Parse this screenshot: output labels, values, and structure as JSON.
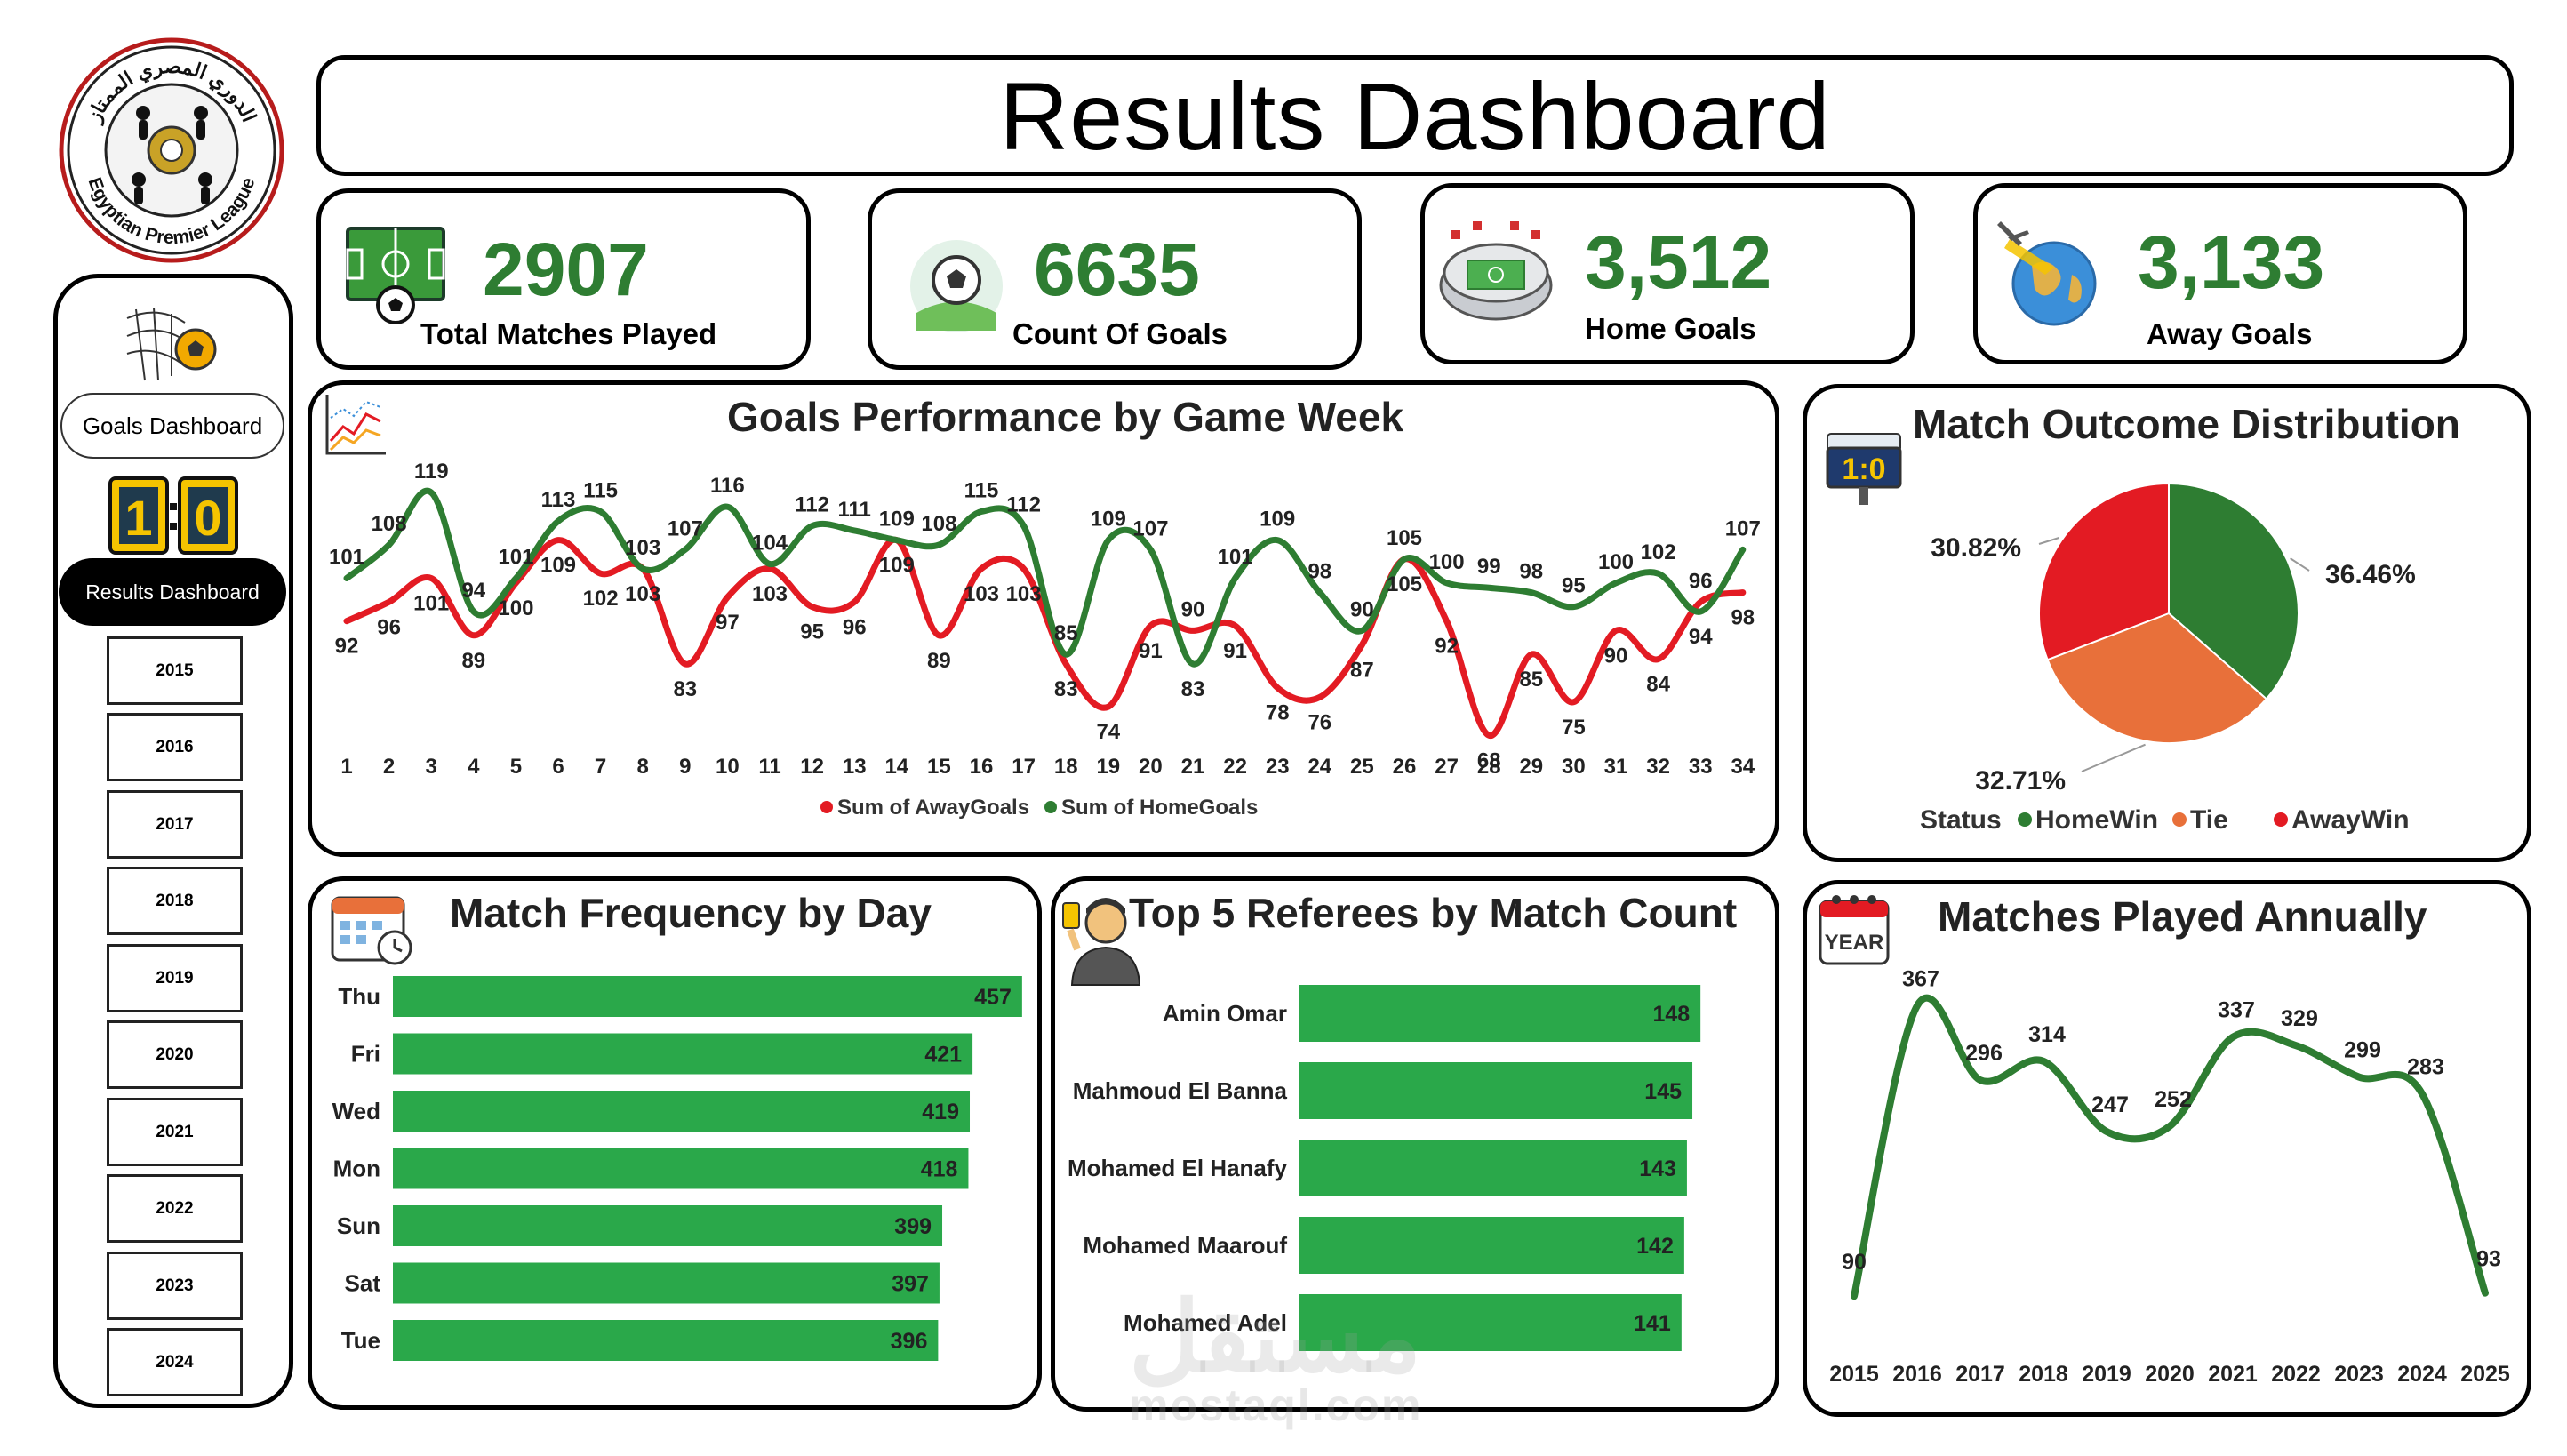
{
  "title": "Results Dashboard",
  "logo": {
    "arabic_text": "الدوري المصري الممتاز",
    "english_text": "Egyptian Premier League"
  },
  "sidebar": {
    "goals_dashboard": "Goals Dashboard",
    "results_dashboard": "Results Dashboard",
    "score_icon_text": "1:0",
    "years": [
      "2015",
      "2016",
      "2017",
      "2018",
      "2019",
      "2020",
      "2021",
      "2022",
      "2023",
      "2024"
    ]
  },
  "kpis": [
    {
      "value": "2907",
      "label": "Total Matches Played",
      "icon": "football-pitch-icon"
    },
    {
      "value": "6635",
      "label": "Count Of Goals",
      "icon": "goal-net-ball-icon"
    },
    {
      "value": "3,512",
      "label": "Home Goals",
      "icon": "stadium-icon"
    },
    {
      "value": "3,133",
      "label": "Away Goals",
      "icon": "airplane-globe-icon"
    }
  ],
  "goals_chart": {
    "title": "Goals Performance by Game Week",
    "legend": [
      "Sum of AwayGoals",
      "Sum of HomeGoals"
    ],
    "colors": {
      "away": "#e31b23",
      "home": "#2e7d32"
    }
  },
  "outcome_chart": {
    "title": "Match Outcome Distribution",
    "legend_title": "Status",
    "icon_text": "1:0"
  },
  "day_chart": {
    "title": "Match Frequency by Day"
  },
  "referee_chart": {
    "title": "Top 5 Referees by Match Count"
  },
  "annual_chart": {
    "title": "Matches Played Annually",
    "icon_text": "YEAR"
  },
  "watermark": {
    "arabic": "مستقل",
    "latin": "mostaql.com"
  },
  "chart_data": [
    {
      "type": "line",
      "title": "Goals Performance by Game Week",
      "x": [
        1,
        2,
        3,
        4,
        5,
        6,
        7,
        8,
        9,
        10,
        11,
        12,
        13,
        14,
        15,
        16,
        17,
        18,
        19,
        20,
        21,
        22,
        23,
        24,
        25,
        26,
        27,
        28,
        29,
        30,
        31,
        32,
        33,
        34
      ],
      "series": [
        {
          "name": "Sum of HomeGoals",
          "values": [
            101,
            108,
            119,
            94,
            101,
            113,
            115,
            103,
            107,
            116,
            104,
            112,
            111,
            109,
            108,
            115,
            112,
            85,
            109,
            107,
            83,
            101,
            109,
            98,
            90,
            105,
            100,
            99,
            98,
            95,
            100,
            102,
            94,
            107
          ]
        },
        {
          "name": "Sum of AwayGoals",
          "values": [
            92,
            96,
            101,
            89,
            100,
            109,
            102,
            103,
            83,
            97,
            103,
            95,
            96,
            109,
            89,
            103,
            103,
            83,
            74,
            91,
            90,
            91,
            78,
            76,
            87,
            105,
            92,
            68,
            85,
            75,
            90,
            84,
            96,
            98
          ]
        }
      ],
      "legend": "bottom"
    },
    {
      "type": "pie",
      "title": "Match Outcome Distribution",
      "categories": [
        "HomeWin",
        "Tie",
        "AwayWin"
      ],
      "values": [
        36.46,
        32.71,
        30.82
      ],
      "labels": [
        "36.46%",
        "32.71%",
        "30.82%"
      ],
      "colors": [
        "#2e7d32",
        "#e8703a",
        "#e31b23"
      ],
      "legend": "bottom"
    },
    {
      "type": "bar",
      "orientation": "horizontal",
      "title": "Match Frequency by Day",
      "categories": [
        "Thu",
        "Fri",
        "Wed",
        "Mon",
        "Sun",
        "Sat",
        "Tue"
      ],
      "values": [
        457,
        421,
        419,
        418,
        399,
        397,
        396
      ],
      "color": "#2aa84a"
    },
    {
      "type": "bar",
      "orientation": "horizontal",
      "title": "Top 5 Referees by Match Count",
      "categories": [
        "Amin Omar",
        "Mahmoud El Banna",
        "Mohamed El Hanafy",
        "Mohamed Maarouf",
        "Mohamed Adel"
      ],
      "values": [
        148,
        145,
        143,
        142,
        141
      ],
      "color": "#2aa84a"
    },
    {
      "type": "line",
      "title": "Matches Played Annually",
      "x": [
        "2015",
        "2016",
        "2017",
        "2018",
        "2019",
        "2020",
        "2021",
        "2022",
        "2023",
        "2024",
        "2025"
      ],
      "values": [
        90,
        367,
        296,
        314,
        247,
        252,
        337,
        329,
        299,
        283,
        93
      ],
      "color": "#2e7d32"
    }
  ]
}
